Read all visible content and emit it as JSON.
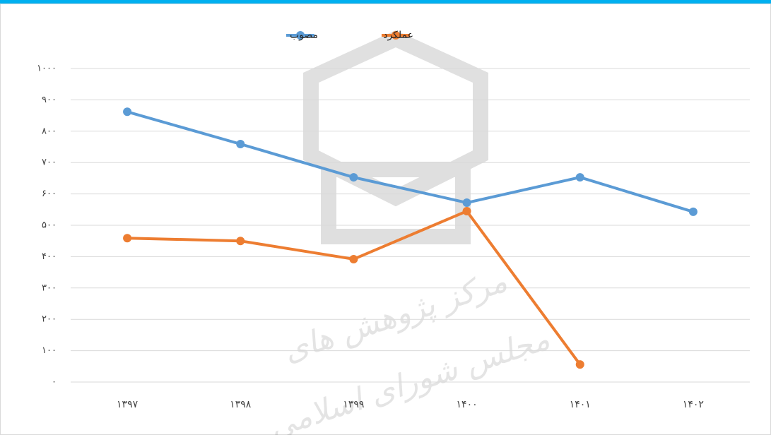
{
  "chart_data": {
    "type": "line",
    "watermark": [
      "مرکز پژوهش های",
      "مجلس شورای اسلامی"
    ],
    "categories": [
      "۱۳۹۷",
      "۱۳۹۸",
      "۱۳۹۹",
      "۱۴۰۰",
      "۱۴۰۱",
      "۱۴۰۲"
    ],
    "series": [
      {
        "name": "مصوب",
        "color": "#5b9bd5",
        "values": [
          862,
          759,
          653,
          572,
          653,
          543
        ]
      },
      {
        "name": "عملکرد",
        "color": "#ed7d31",
        "values": [
          459,
          450,
          392,
          545,
          56,
          null
        ]
      }
    ],
    "ylim": [
      0,
      1000
    ],
    "yticks": [
      {
        "value": 0,
        "label": "۰"
      },
      {
        "value": 100,
        "label": "۱۰۰"
      },
      {
        "value": 200,
        "label": "۲۰۰"
      },
      {
        "value": 300,
        "label": "۳۰۰"
      },
      {
        "value": 400,
        "label": "۴۰۰"
      },
      {
        "value": 500,
        "label": "۵۰۰"
      },
      {
        "value": 600,
        "label": "۶۰۰"
      },
      {
        "value": 700,
        "label": "۷۰۰"
      },
      {
        "value": 800,
        "label": "۸۰۰"
      },
      {
        "value": 900,
        "label": "۹۰۰"
      },
      {
        "value": 1000,
        "label": "۱۰۰۰"
      }
    ],
    "grid": true,
    "legend": "top"
  }
}
